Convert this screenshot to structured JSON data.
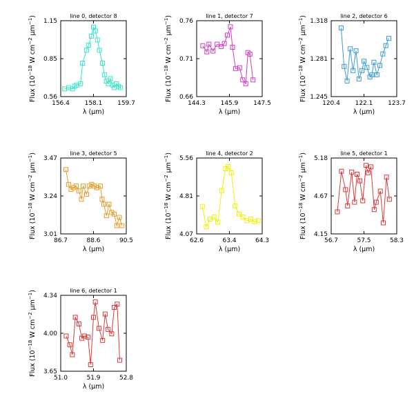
{
  "page": {
    "background": "#ffffff"
  },
  "chart_data": [
    {
      "type": "line",
      "title": "line 0, detector 8",
      "xlabel": "λ (μm)",
      "ylabel": "Flux (10⁻¹⁸ W cm⁻² μm⁻¹)",
      "xlim": [
        156.4,
        159.7
      ],
      "ylim": [
        0.56,
        1.15
      ],
      "xticks": [
        "156.4",
        "158.1",
        "159.7"
      ],
      "yticks": [
        "0.56",
        "0.85",
        "1.15"
      ],
      "color": "#33e6c8",
      "marker": "square",
      "series": [
        {
          "x": [
            156.6,
            156.8,
            157.0,
            157.1,
            157.2,
            157.4,
            157.5,
            157.7,
            157.8,
            157.95,
            158.05,
            158.15,
            158.25,
            158.35,
            158.5,
            158.6,
            158.7,
            158.8,
            158.9,
            159.0,
            159.1,
            159.2,
            159.3,
            159.4
          ],
          "y": [
            0.62,
            0.63,
            0.62,
            0.64,
            0.65,
            0.66,
            0.82,
            0.92,
            0.96,
            1.03,
            1.1,
            1.07,
            1.0,
            0.92,
            0.82,
            0.73,
            0.68,
            0.66,
            0.7,
            0.65,
            0.63,
            0.66,
            0.64,
            0.63
          ]
        }
      ]
    },
    {
      "type": "line",
      "title": "line 1, detector 7",
      "xlabel": "λ (μm)",
      "ylabel": "Flux (10⁻¹⁸ W cm⁻² μm⁻¹)",
      "xlim": [
        144.3,
        147.5
      ],
      "ylim": [
        0.66,
        0.76
      ],
      "xticks": [
        "144.3",
        "145.9",
        "147.5"
      ],
      "yticks": [
        "0.66",
        "0.71",
        "0.76"
      ],
      "color": "#d63ac0",
      "marker": "square",
      "series": [
        {
          "x": [
            144.6,
            144.8,
            144.9,
            145.1,
            145.3,
            145.5,
            145.65,
            145.8,
            145.95,
            146.05,
            146.2,
            146.4,
            146.55,
            146.7,
            146.8,
            146.9,
            147.05
          ],
          "y": [
            0.727,
            0.719,
            0.729,
            0.72,
            0.729,
            0.726,
            0.73,
            0.741,
            0.752,
            0.725,
            0.697,
            0.698,
            0.682,
            0.677,
            0.718,
            0.716,
            0.682
          ]
        }
      ]
    },
    {
      "type": "line",
      "title": "line 2, detector 6",
      "xlabel": "λ (μm)",
      "ylabel": "Flux (10⁻¹⁸ W cm⁻² μm⁻¹)",
      "xlim": [
        120.4,
        123.7
      ],
      "ylim": [
        1.245,
        1.318
      ],
      "xticks": [
        "120.4",
        "122.1",
        "123.7"
      ],
      "yticks": [
        "1.245",
        "1.281",
        "1.318"
      ],
      "color": "#3a9ad6",
      "marker": "square",
      "series": [
        {
          "x": [
            120.9,
            121.05,
            121.2,
            121.35,
            121.5,
            121.65,
            121.8,
            121.95,
            122.05,
            122.2,
            122.35,
            122.45,
            122.55,
            122.7,
            122.85,
            123.0,
            123.15,
            123.3
          ],
          "y": [
            1.311,
            1.274,
            1.26,
            1.291,
            1.27,
            1.289,
            1.262,
            1.27,
            1.279,
            1.273,
            1.264,
            1.266,
            1.278,
            1.266,
            1.275,
            1.286,
            1.294,
            1.301
          ]
        }
      ]
    },
    {
      "type": "line",
      "title": "line 3, detector 5",
      "xlabel": "λ (μm)",
      "ylabel": "Flux (10⁻¹⁸ W cm⁻² μm⁻¹)",
      "xlim": [
        86.7,
        90.5
      ],
      "ylim": [
        3.01,
        3.47
      ],
      "xticks": [
        "86.7",
        "88.6",
        "90.5"
      ],
      "yticks": [
        "3.01",
        "3.24",
        "3.47"
      ],
      "color": "#e89a2a",
      "marker": "square",
      "series": [
        {
          "x": [
            87.0,
            87.15,
            87.3,
            87.45,
            87.6,
            87.75,
            87.9,
            88.0,
            88.2,
            88.35,
            88.5,
            88.65,
            88.8,
            89.0,
            89.1,
            89.2,
            89.35,
            89.5,
            89.65,
            89.8,
            89.95,
            90.1,
            90.25
          ],
          "y": [
            3.4,
            3.31,
            3.28,
            3.29,
            3.3,
            3.27,
            3.22,
            3.3,
            3.25,
            3.3,
            3.31,
            3.3,
            3.29,
            3.3,
            3.22,
            3.19,
            3.12,
            3.19,
            3.14,
            3.13,
            3.06,
            3.11,
            3.06
          ]
        }
      ]
    },
    {
      "type": "line",
      "title": "line 4, detector 2",
      "xlabel": "λ (μm)",
      "ylabel": "Flux (10⁻¹⁸ W cm⁻² μm⁻¹)",
      "xlim": [
        62.6,
        64.3
      ],
      "ylim": [
        4.07,
        5.56
      ],
      "xticks": [
        "62.6",
        "63.4",
        "64.3"
      ],
      "yticks": [
        "4.07",
        "4.81",
        "5.56"
      ],
      "color": "#f0f000",
      "marker": "square",
      "series": [
        {
          "x": [
            62.75,
            62.85,
            62.95,
            63.05,
            63.15,
            63.25,
            63.35,
            63.42,
            63.5,
            63.6,
            63.7,
            63.8,
            63.9,
            64.0,
            64.1,
            64.2
          ],
          "y": [
            4.61,
            4.21,
            4.36,
            4.4,
            4.3,
            4.92,
            5.35,
            5.39,
            5.27,
            4.62,
            4.46,
            4.4,
            4.33,
            4.36,
            4.31,
            4.33
          ]
        }
      ]
    },
    {
      "type": "line",
      "title": "line 5, detector 1",
      "xlabel": "λ (μm)",
      "ylabel": "Flux (10⁻¹⁸ W cm⁻² μm⁻¹)",
      "xlim": [
        56.7,
        58.3
      ],
      "ylim": [
        4.15,
        5.18
      ],
      "xticks": [
        "56.7",
        "57.5",
        "58.3"
      ],
      "yticks": [
        "4.15",
        "4.67",
        "5.18"
      ],
      "color": "#d63a3a",
      "marker": "square",
      "series": [
        {
          "x": [
            56.85,
            56.95,
            57.05,
            57.1,
            57.2,
            57.27,
            57.33,
            57.4,
            57.47,
            57.55,
            57.6,
            57.67,
            57.75,
            57.8,
            57.9,
            57.97,
            58.05,
            58.12
          ],
          "y": [
            4.45,
            5.0,
            4.75,
            4.53,
            4.99,
            4.58,
            4.96,
            4.87,
            4.6,
            5.08,
            4.98,
            5.06,
            4.48,
            4.58,
            4.73,
            4.3,
            4.92,
            4.62
          ]
        }
      ]
    },
    {
      "type": "line",
      "title": "line 6, detector 1",
      "xlabel": "λ (μm)",
      "ylabel": "Flux (10⁻¹⁸ W cm⁻² μm⁻¹)",
      "xlim": [
        51.0,
        52.8
      ],
      "ylim": [
        3.65,
        4.34
      ],
      "xticks": [
        "51.0",
        "51.9",
        "52.8"
      ],
      "yticks": [
        "3.65",
        "4.00",
        "4.34"
      ],
      "color": "#d63a3a",
      "marker": "square",
      "series": [
        {
          "x": [
            51.15,
            51.25,
            51.32,
            51.4,
            51.5,
            51.58,
            51.65,
            51.75,
            51.82,
            51.9,
            51.95,
            52.05,
            52.15,
            52.22,
            52.3,
            52.4,
            52.47,
            52.55,
            52.62
          ],
          "y": [
            3.97,
            3.89,
            3.8,
            4.14,
            4.08,
            3.95,
            3.97,
            3.96,
            3.71,
            4.14,
            4.28,
            4.04,
            3.93,
            4.17,
            4.03,
            3.99,
            4.23,
            4.26,
            3.75
          ]
        }
      ]
    }
  ]
}
